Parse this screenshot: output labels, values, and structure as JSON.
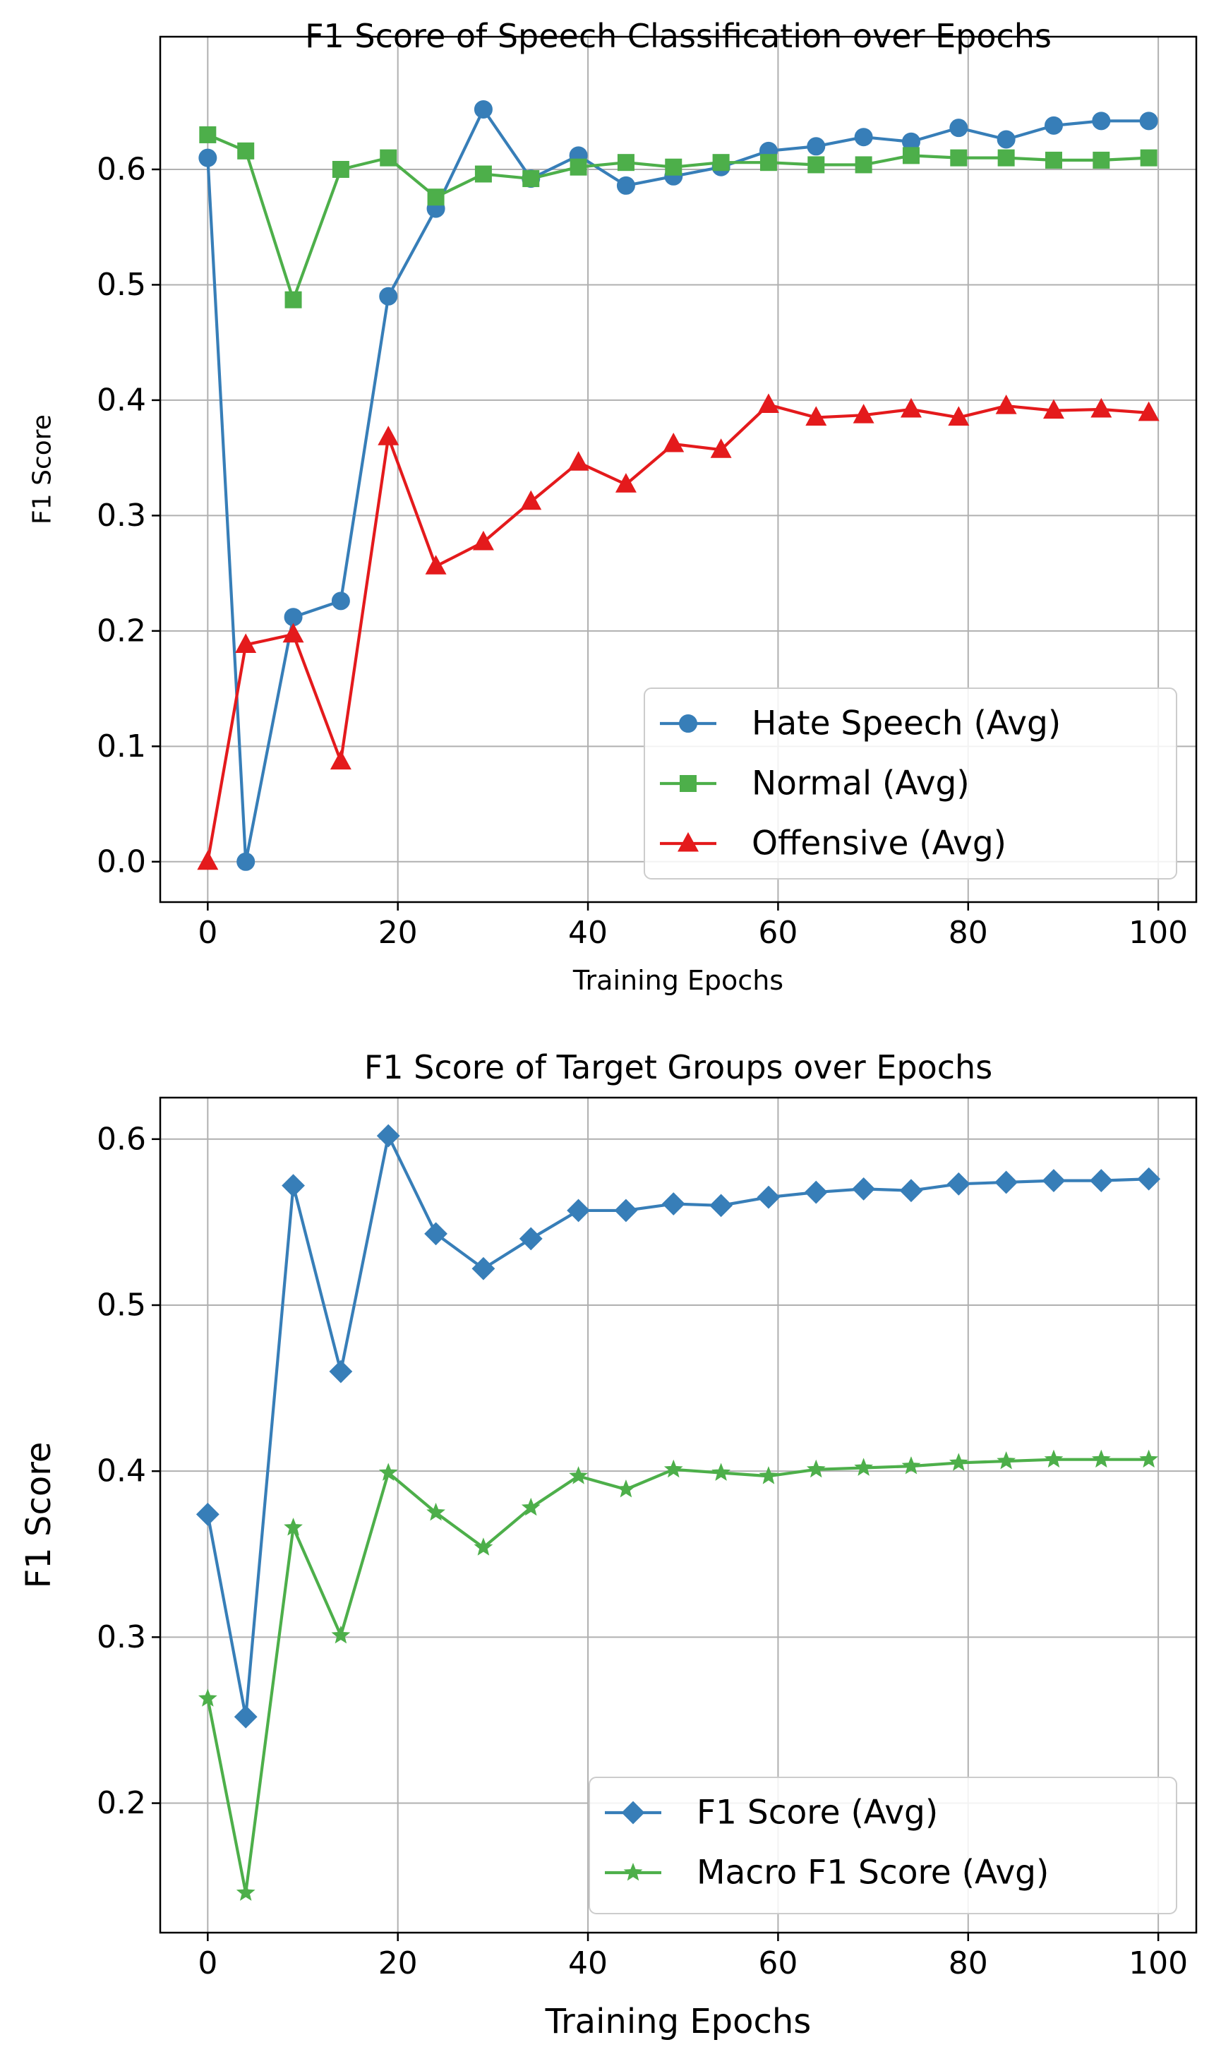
{
  "chart_data": [
    {
      "type": "line",
      "title": "F1 Score of Speech Classification over Epochs",
      "xlabel": "Training Epochs",
      "ylabel": "F1 Score",
      "xlim": [
        -5,
        104
      ],
      "ylim": [
        -0.035,
        0.715
      ],
      "xticks": [
        0,
        20,
        40,
        60,
        80,
        100
      ],
      "xtick_labels": [
        "0",
        "20",
        "40",
        "60",
        "80",
        "100"
      ],
      "yticks": [
        0.0,
        0.1,
        0.2,
        0.3,
        0.4,
        0.5,
        0.6
      ],
      "ytick_labels": [
        "0.0",
        "0.1",
        "0.2",
        "0.3",
        "0.4",
        "0.5",
        "0.6"
      ],
      "grid": true,
      "legend_position": "lower-right",
      "x": [
        0,
        4,
        9,
        14,
        19,
        24,
        29,
        34,
        39,
        44,
        49,
        54,
        59,
        64,
        69,
        74,
        79,
        84,
        89,
        94,
        99
      ],
      "series": [
        {
          "name": "Hate Speech (Avg)",
          "color": "#377eb8",
          "marker": "circle",
          "values": [
            0.61,
            0.0,
            0.212,
            0.226,
            0.49,
            0.566,
            0.652,
            0.592,
            0.612,
            0.586,
            0.594,
            0.602,
            0.616,
            0.62,
            0.628,
            0.624,
            0.636,
            0.626,
            0.638,
            0.642,
            0.642
          ]
        },
        {
          "name": "Normal (Avg)",
          "color": "#4daf4a",
          "marker": "square",
          "values": [
            0.63,
            0.616,
            0.487,
            0.6,
            0.61,
            0.576,
            0.596,
            0.592,
            0.602,
            0.606,
            0.602,
            0.606,
            0.606,
            0.604,
            0.604,
            0.612,
            0.61,
            0.61,
            0.608,
            0.608,
            0.61
          ]
        },
        {
          "name": "Offensive (Avg)",
          "color": "#e41a1c",
          "marker": "triangle",
          "values": [
            0.0,
            0.188,
            0.197,
            0.087,
            0.368,
            0.256,
            0.277,
            0.312,
            0.346,
            0.327,
            0.362,
            0.357,
            0.396,
            0.385,
            0.387,
            0.392,
            0.385,
            0.395,
            0.391,
            0.392,
            0.389
          ]
        }
      ]
    },
    {
      "type": "line",
      "title": "F1 Score of Target Groups over Epochs",
      "xlabel": "Training Epochs",
      "ylabel": "F1 Score",
      "xlim": [
        -5,
        104
      ],
      "ylim": [
        0.122,
        0.625
      ],
      "xticks": [
        0,
        20,
        40,
        60,
        80,
        100
      ],
      "xtick_labels": [
        "0",
        "20",
        "40",
        "60",
        "80",
        "100"
      ],
      "yticks": [
        0.2,
        0.3,
        0.4,
        0.5,
        0.6
      ],
      "ytick_labels": [
        "0.2",
        "0.3",
        "0.4",
        "0.5",
        "0.6"
      ],
      "grid": true,
      "legend_position": "lower-right",
      "x": [
        0,
        4,
        9,
        14,
        19,
        24,
        29,
        34,
        39,
        44,
        49,
        54,
        59,
        64,
        69,
        74,
        79,
        84,
        89,
        94,
        99
      ],
      "series": [
        {
          "name": "F1 Score (Avg)",
          "color": "#377eb8",
          "marker": "diamond",
          "values": [
            0.374,
            0.252,
            0.572,
            0.46,
            0.602,
            0.543,
            0.522,
            0.54,
            0.557,
            0.557,
            0.561,
            0.56,
            0.565,
            0.568,
            0.57,
            0.569,
            0.573,
            0.574,
            0.575,
            0.575,
            0.576
          ]
        },
        {
          "name": "Macro F1 Score (Avg)",
          "color": "#4daf4a",
          "marker": "star",
          "values": [
            0.263,
            0.146,
            0.366,
            0.301,
            0.399,
            0.375,
            0.354,
            0.378,
            0.397,
            0.389,
            0.401,
            0.399,
            0.397,
            0.401,
            0.402,
            0.403,
            0.405,
            0.406,
            0.407,
            0.407,
            0.407
          ]
        }
      ]
    }
  ]
}
